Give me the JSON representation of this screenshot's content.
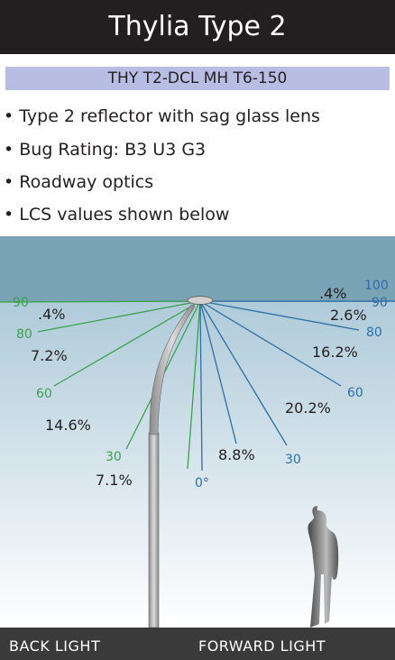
{
  "header": {
    "title": "Thylia Type 2",
    "subtitle": "THY T2-DCL MH T6-150"
  },
  "bullets": [
    "Type 2 reflector with sag glass lens",
    "Bug Rating: B3 U3 G3",
    "Roadway optics",
    "LCS values shown below"
  ],
  "diagram": {
    "back_angles": [
      "90",
      "80",
      "60",
      "30"
    ],
    "forward_angles": [
      "100",
      "90",
      "80",
      "60",
      "30"
    ],
    "nadir_label": "0°",
    "back_values": [
      ".4%",
      "7.2%",
      "14.6%",
      "7.1%"
    ],
    "forward_values": [
      ".4%",
      "2.6%",
      "16.2%",
      "20.2%",
      "8.8%"
    ]
  },
  "footer": {
    "back": "BACK LIGHT",
    "forward": "FORWARD LIGHT"
  }
}
